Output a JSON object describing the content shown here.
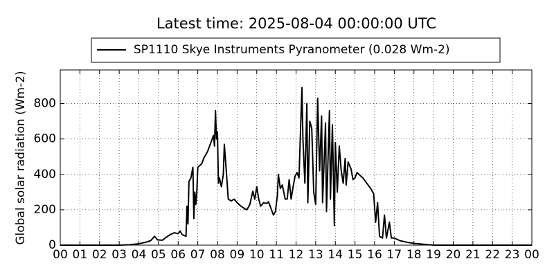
{
  "chart_data": {
    "type": "line",
    "title": "Latest time: 2025-08-04 00:00:00 UTC",
    "y_label": "Global solar radiation (Wm-2)",
    "grid": true,
    "legend": "top-center",
    "x": [
      0,
      3,
      3.5,
      4.0,
      4.3,
      4.6,
      4.8,
      4.95,
      5.2,
      5.4,
      5.6,
      5.8,
      6.0,
      6.1,
      6.2,
      6.4,
      6.45,
      6.5,
      6.55,
      6.65,
      6.75,
      6.8,
      6.85,
      6.9,
      6.95,
      7.0,
      7.2,
      7.3,
      7.5,
      7.7,
      7.8,
      7.85,
      7.9,
      7.95,
      8.0,
      8.05,
      8.1,
      8.2,
      8.3,
      8.35,
      8.45,
      8.55,
      8.7,
      8.85,
      9.0,
      9.2,
      9.4,
      9.5,
      9.65,
      9.8,
      9.9,
      10.0,
      10.1,
      10.2,
      10.35,
      10.5,
      10.6,
      10.7,
      10.85,
      10.95,
      11.05,
      11.1,
      11.2,
      11.3,
      11.45,
      11.55,
      11.65,
      11.75,
      11.85,
      11.95,
      12.05,
      12.15,
      12.25,
      12.3,
      12.35,
      12.45,
      12.55,
      12.6,
      12.7,
      12.8,
      12.9,
      13.0,
      13.1,
      13.2,
      13.3,
      13.35,
      13.5,
      13.55,
      13.7,
      13.75,
      13.85,
      13.95,
      14.0,
      14.1,
      14.2,
      14.3,
      14.4,
      14.5,
      14.55,
      14.65,
      14.8,
      14.9,
      15.0,
      15.1,
      15.2,
      15.4,
      15.6,
      15.8,
      15.95,
      16.05,
      16.15,
      16.25,
      16.4,
      16.5,
      16.6,
      16.75,
      16.85,
      17.0,
      17.3,
      17.7,
      18.0,
      18.5,
      19.0,
      24
    ],
    "series": [
      {
        "name": "SP1110 Skye Instruments Pyranometer (0.028 Wm-2)",
        "color": "#000000",
        "values": [
          0,
          0,
          2,
          8,
          15,
          25,
          50,
          30,
          28,
          45,
          60,
          70,
          65,
          80,
          60,
          50,
          220,
          120,
          360,
          380,
          440,
          150,
          300,
          230,
          300,
          440,
          460,
          490,
          530,
          590,
          620,
          560,
          760,
          600,
          640,
          350,
          380,
          330,
          400,
          570,
          420,
          260,
          250,
          260,
          240,
          220,
          205,
          200,
          230,
          305,
          260,
          330,
          260,
          220,
          240,
          235,
          245,
          215,
          170,
          190,
          280,
          400,
          320,
          340,
          260,
          260,
          370,
          260,
          330,
          390,
          410,
          380,
          720,
          890,
          600,
          350,
          800,
          240,
          700,
          660,
          300,
          230,
          830,
          420,
          730,
          240,
          690,
          190,
          760,
          260,
          680,
          110,
          580,
          300,
          560,
          420,
          350,
          490,
          340,
          470,
          430,
          370,
          380,
          410,
          400,
          380,
          350,
          320,
          290,
          130,
          240,
          50,
          40,
          170,
          40,
          130,
          40,
          40,
          25,
          15,
          10,
          5,
          0,
          0
        ]
      }
    ],
    "xlim": [
      0,
      24
    ],
    "ylim": [
      0,
      990
    ],
    "yticks": [
      0,
      200,
      400,
      600,
      800
    ],
    "xticks": [
      {
        "value": 0,
        "label": "00"
      },
      {
        "value": 1,
        "label": "01"
      },
      {
        "value": 2,
        "label": "02"
      },
      {
        "value": 3,
        "label": "03"
      },
      {
        "value": 4,
        "label": "04"
      },
      {
        "value": 5,
        "label": "05"
      },
      {
        "value": 6,
        "label": "06"
      },
      {
        "value": 7,
        "label": "07"
      },
      {
        "value": 8,
        "label": "08"
      },
      {
        "value": 9,
        "label": "09"
      },
      {
        "value": 10,
        "label": "10"
      },
      {
        "value": 11,
        "label": "11"
      },
      {
        "value": 12,
        "label": "12"
      },
      {
        "value": 13,
        "label": "13"
      },
      {
        "value": 14,
        "label": "14"
      },
      {
        "value": 15,
        "label": "15"
      },
      {
        "value": 16,
        "label": "16"
      },
      {
        "value": 17,
        "label": "17"
      },
      {
        "value": 18,
        "label": "18"
      },
      {
        "value": 19,
        "label": "19"
      },
      {
        "value": 20,
        "label": "20"
      },
      {
        "value": 21,
        "label": "21"
      },
      {
        "value": 22,
        "label": "22"
      },
      {
        "value": 23,
        "label": "23"
      },
      {
        "value": 24,
        "label": "00"
      }
    ]
  }
}
